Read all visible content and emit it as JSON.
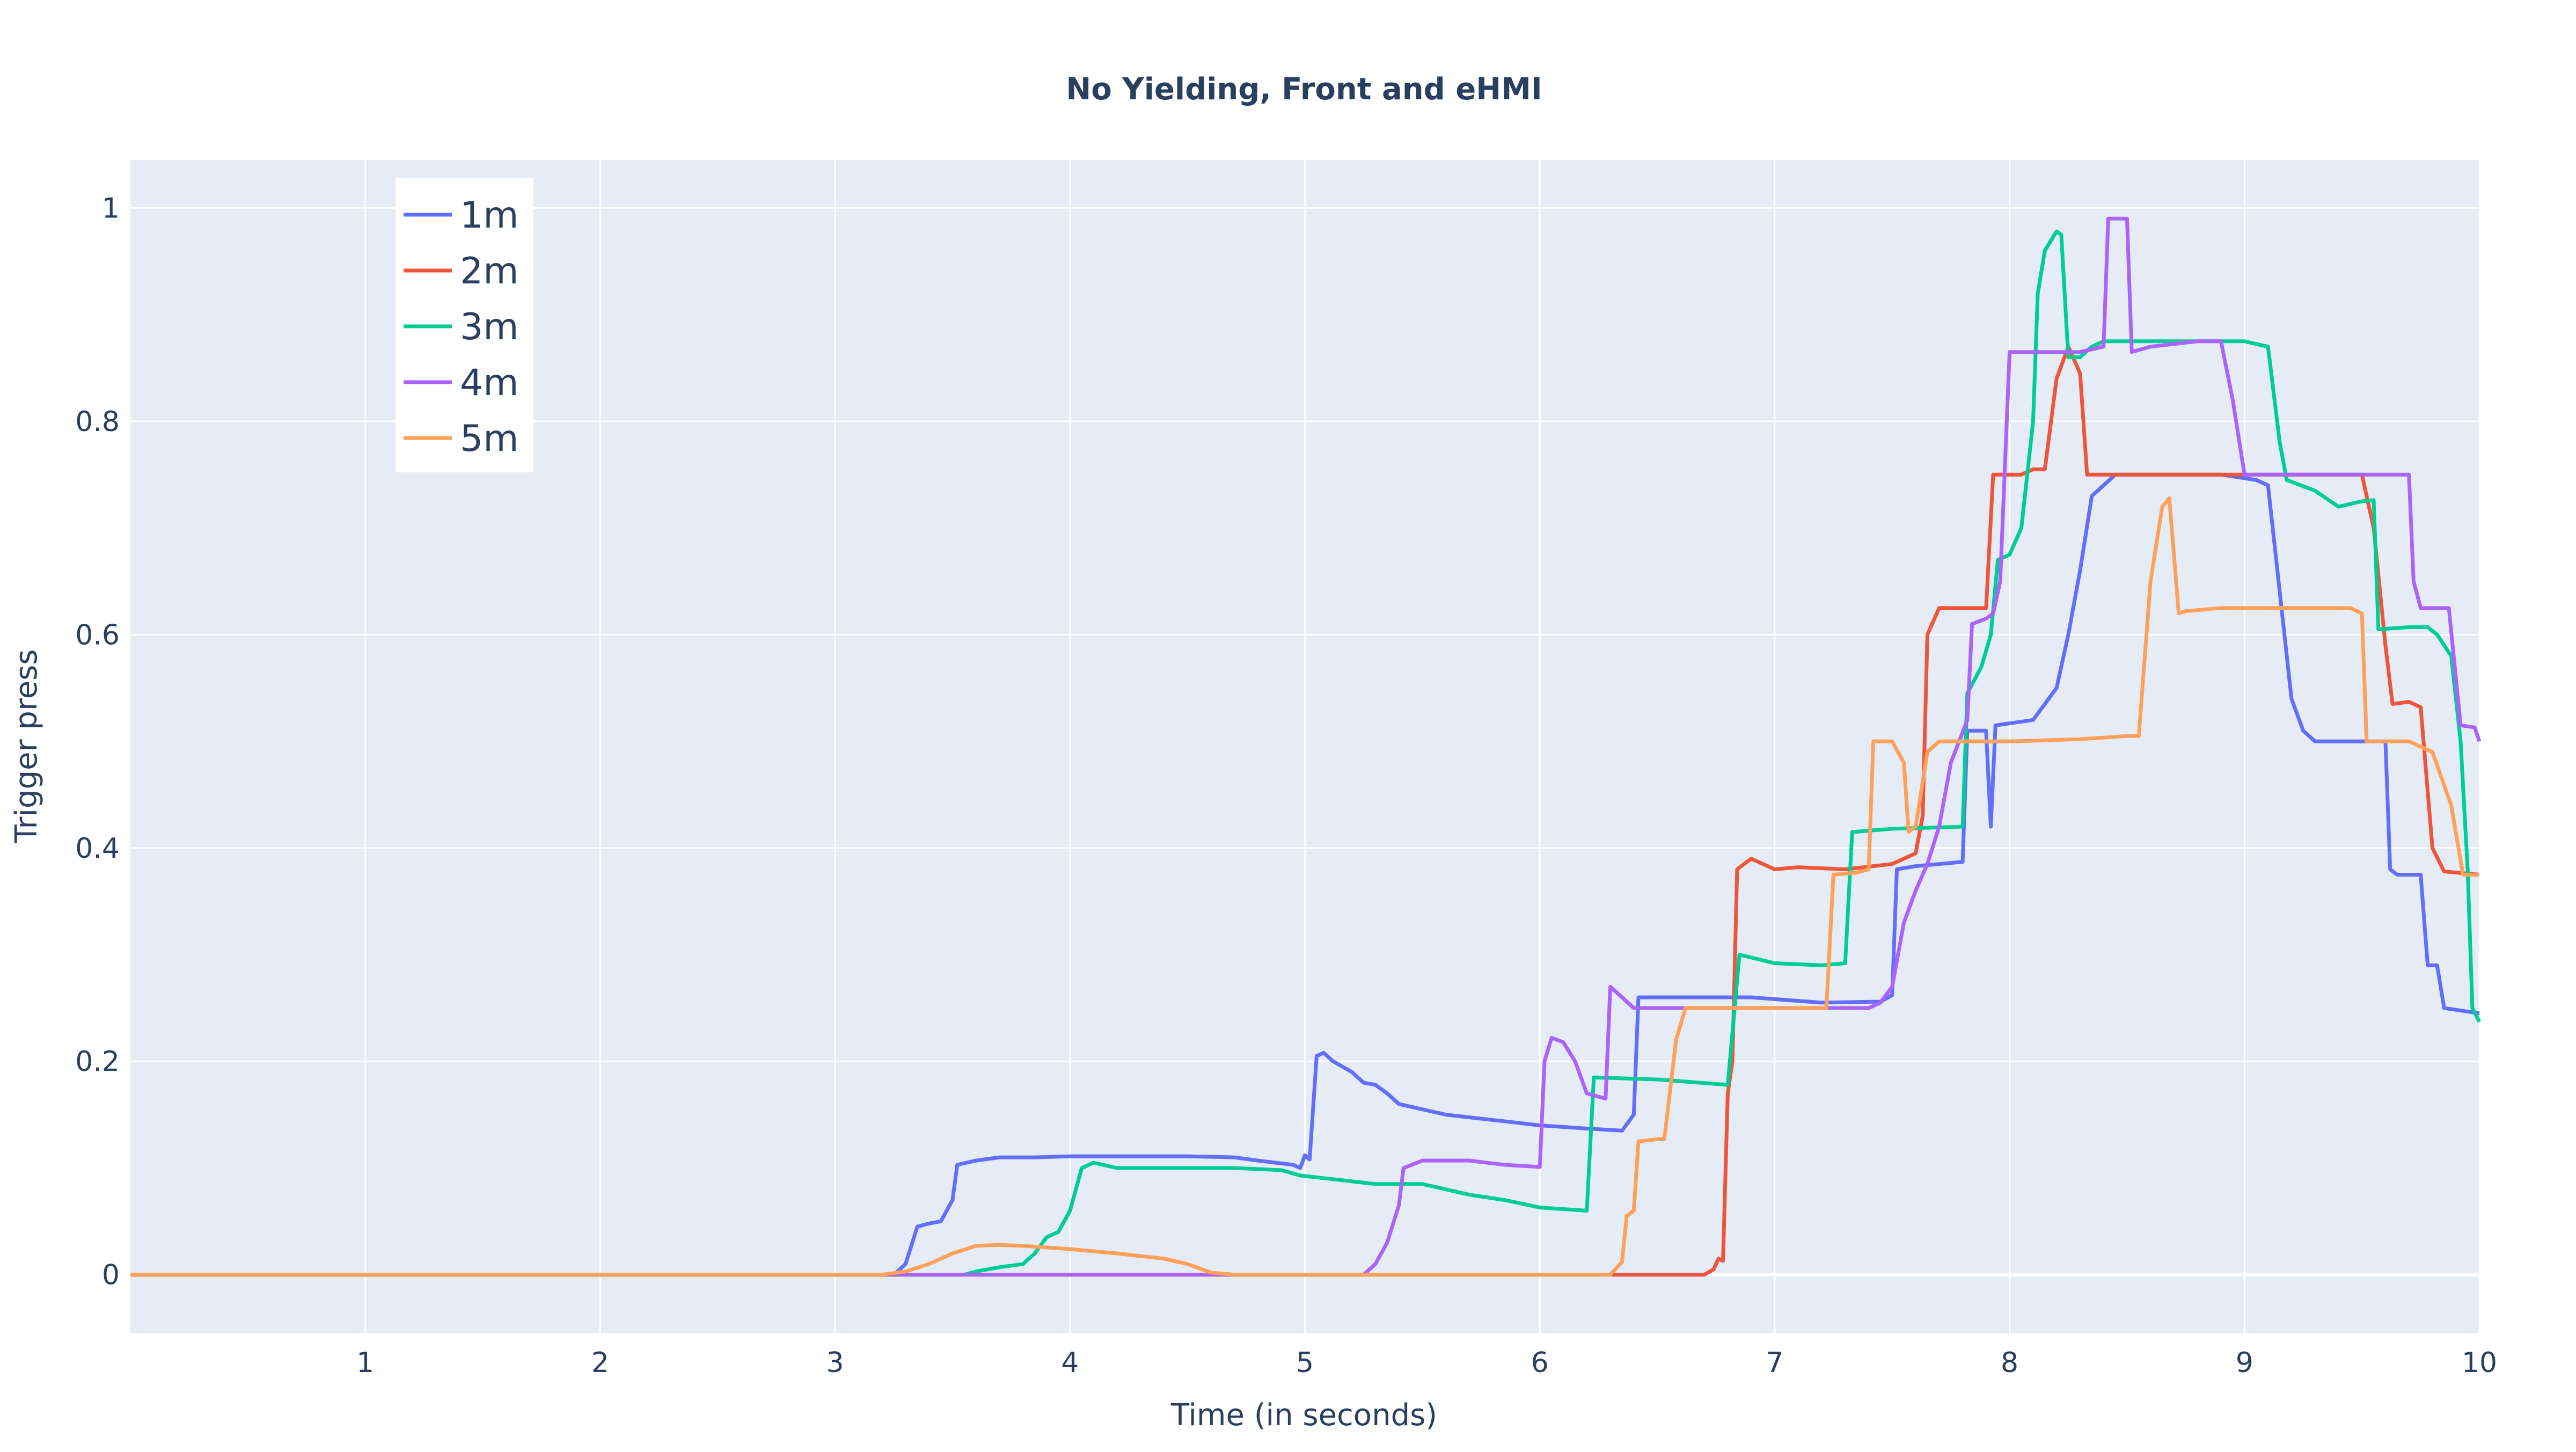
{
  "chart_data": {
    "type": "line",
    "title": "No Yielding, Front and eHMI",
    "xlabel": "Time (in seconds)",
    "ylabel": "Trigger press",
    "xlim": [
      0,
      10
    ],
    "ylim": [
      -0.055,
      1.045
    ],
    "xticks": [
      1,
      2,
      3,
      4,
      5,
      6,
      7,
      8,
      9,
      10
    ],
    "xtick_labels": [
      "1",
      "2",
      "3",
      "4",
      "5",
      "6",
      "7",
      "8",
      "9",
      "10"
    ],
    "yticks": [
      0,
      0.2,
      0.4,
      0.6,
      0.8,
      1
    ],
    "ytick_labels": [
      "0",
      "0.2",
      "0.4",
      "0.6",
      "0.8",
      "1"
    ],
    "grid": true,
    "legend_position": "top-left",
    "background_color": "#e5ecf6",
    "series": [
      {
        "name": "1m",
        "color": "#636efa",
        "points": [
          [
            0,
            0
          ],
          [
            3.25,
            0
          ],
          [
            3.3,
            0.01
          ],
          [
            3.35,
            0.045
          ],
          [
            3.4,
            0.048
          ],
          [
            3.45,
            0.05
          ],
          [
            3.5,
            0.07
          ],
          [
            3.52,
            0.103
          ],
          [
            3.6,
            0.107
          ],
          [
            3.7,
            0.11
          ],
          [
            3.85,
            0.11
          ],
          [
            4.0,
            0.111
          ],
          [
            4.5,
            0.111
          ],
          [
            4.7,
            0.11
          ],
          [
            4.8,
            0.107
          ],
          [
            4.95,
            0.103
          ],
          [
            4.98,
            0.1
          ],
          [
            5.0,
            0.112
          ],
          [
            5.02,
            0.108
          ],
          [
            5.05,
            0.205
          ],
          [
            5.08,
            0.208
          ],
          [
            5.12,
            0.2
          ],
          [
            5.2,
            0.19
          ],
          [
            5.25,
            0.18
          ],
          [
            5.3,
            0.178
          ],
          [
            5.35,
            0.17
          ],
          [
            5.4,
            0.16
          ],
          [
            5.5,
            0.155
          ],
          [
            5.6,
            0.15
          ],
          [
            5.8,
            0.145
          ],
          [
            6.0,
            0.14
          ],
          [
            6.2,
            0.137
          ],
          [
            6.35,
            0.135
          ],
          [
            6.4,
            0.15
          ],
          [
            6.42,
            0.26
          ],
          [
            6.6,
            0.26
          ],
          [
            6.9,
            0.26
          ],
          [
            7.2,
            0.255
          ],
          [
            7.45,
            0.256
          ],
          [
            7.5,
            0.262
          ],
          [
            7.52,
            0.38
          ],
          [
            7.6,
            0.383
          ],
          [
            7.7,
            0.385
          ],
          [
            7.8,
            0.387
          ],
          [
            7.82,
            0.51
          ],
          [
            7.9,
            0.51
          ],
          [
            7.92,
            0.42
          ],
          [
            7.94,
            0.515
          ],
          [
            8.1,
            0.52
          ],
          [
            8.2,
            0.55
          ],
          [
            8.25,
            0.6
          ],
          [
            8.3,
            0.66
          ],
          [
            8.35,
            0.73
          ],
          [
            8.45,
            0.75
          ],
          [
            8.6,
            0.75
          ],
          [
            8.9,
            0.75
          ],
          [
            9.05,
            0.745
          ],
          [
            9.1,
            0.74
          ],
          [
            9.15,
            0.64
          ],
          [
            9.2,
            0.54
          ],
          [
            9.25,
            0.51
          ],
          [
            9.3,
            0.5
          ],
          [
            9.6,
            0.5
          ],
          [
            9.62,
            0.38
          ],
          [
            9.65,
            0.375
          ],
          [
            9.75,
            0.375
          ],
          [
            9.78,
            0.29
          ],
          [
            9.82,
            0.29
          ],
          [
            9.85,
            0.25
          ],
          [
            10.0,
            0.245
          ]
        ]
      },
      {
        "name": "2m",
        "color": "#ef553b",
        "points": [
          [
            0,
            0
          ],
          [
            6.7,
            0
          ],
          [
            6.74,
            0.005
          ],
          [
            6.76,
            0.015
          ],
          [
            6.78,
            0.013
          ],
          [
            6.8,
            0.17
          ],
          [
            6.82,
            0.2
          ],
          [
            6.84,
            0.38
          ],
          [
            6.9,
            0.39
          ],
          [
            6.95,
            0.385
          ],
          [
            7.0,
            0.38
          ],
          [
            7.1,
            0.382
          ],
          [
            7.3,
            0.38
          ],
          [
            7.5,
            0.385
          ],
          [
            7.6,
            0.395
          ],
          [
            7.63,
            0.43
          ],
          [
            7.65,
            0.6
          ],
          [
            7.7,
            0.625
          ],
          [
            7.85,
            0.625
          ],
          [
            7.9,
            0.625
          ],
          [
            7.93,
            0.75
          ],
          [
            8.05,
            0.75
          ],
          [
            8.1,
            0.755
          ],
          [
            8.15,
            0.755
          ],
          [
            8.2,
            0.84
          ],
          [
            8.25,
            0.87
          ],
          [
            8.3,
            0.845
          ],
          [
            8.33,
            0.75
          ],
          [
            8.6,
            0.75
          ],
          [
            9.0,
            0.75
          ],
          [
            9.3,
            0.75
          ],
          [
            9.5,
            0.75
          ],
          [
            9.55,
            0.7
          ],
          [
            9.6,
            0.59
          ],
          [
            9.63,
            0.535
          ],
          [
            9.7,
            0.537
          ],
          [
            9.75,
            0.532
          ],
          [
            9.8,
            0.4
          ],
          [
            9.85,
            0.378
          ],
          [
            10.0,
            0.375
          ]
        ]
      },
      {
        "name": "3m",
        "color": "#00cc96",
        "points": [
          [
            0,
            0
          ],
          [
            3.55,
            0
          ],
          [
            3.6,
            0.003
          ],
          [
            3.7,
            0.007
          ],
          [
            3.8,
            0.01
          ],
          [
            3.85,
            0.02
          ],
          [
            3.9,
            0.035
          ],
          [
            3.95,
            0.04
          ],
          [
            4.0,
            0.06
          ],
          [
            4.05,
            0.1
          ],
          [
            4.1,
            0.105
          ],
          [
            4.2,
            0.1
          ],
          [
            4.4,
            0.1
          ],
          [
            4.7,
            0.1
          ],
          [
            4.9,
            0.098
          ],
          [
            4.98,
            0.093
          ],
          [
            5.1,
            0.09
          ],
          [
            5.3,
            0.085
          ],
          [
            5.5,
            0.085
          ],
          [
            5.7,
            0.075
          ],
          [
            5.85,
            0.07
          ],
          [
            6.0,
            0.063
          ],
          [
            6.2,
            0.06
          ],
          [
            6.23,
            0.185
          ],
          [
            6.5,
            0.183
          ],
          [
            6.8,
            0.178
          ],
          [
            6.85,
            0.3
          ],
          [
            7.0,
            0.292
          ],
          [
            7.2,
            0.29
          ],
          [
            7.3,
            0.292
          ],
          [
            7.33,
            0.415
          ],
          [
            7.5,
            0.418
          ],
          [
            7.8,
            0.42
          ],
          [
            7.82,
            0.545
          ],
          [
            7.88,
            0.57
          ],
          [
            7.92,
            0.6
          ],
          [
            7.95,
            0.67
          ],
          [
            8.0,
            0.675
          ],
          [
            8.05,
            0.7
          ],
          [
            8.1,
            0.8
          ],
          [
            8.12,
            0.92
          ],
          [
            8.15,
            0.96
          ],
          [
            8.2,
            0.978
          ],
          [
            8.22,
            0.975
          ],
          [
            8.25,
            0.86
          ],
          [
            8.3,
            0.86
          ],
          [
            8.35,
            0.87
          ],
          [
            8.4,
            0.875
          ],
          [
            8.6,
            0.875
          ],
          [
            9.0,
            0.875
          ],
          [
            9.1,
            0.87
          ],
          [
            9.15,
            0.78
          ],
          [
            9.18,
            0.745
          ],
          [
            9.3,
            0.735
          ],
          [
            9.4,
            0.72
          ],
          [
            9.5,
            0.725
          ],
          [
            9.55,
            0.726
          ],
          [
            9.57,
            0.605
          ],
          [
            9.7,
            0.607
          ],
          [
            9.78,
            0.607
          ],
          [
            9.82,
            0.6
          ],
          [
            9.88,
            0.58
          ],
          [
            9.92,
            0.5
          ],
          [
            9.95,
            0.38
          ],
          [
            9.97,
            0.25
          ],
          [
            10.0,
            0.237
          ]
        ]
      },
      {
        "name": "4m",
        "color": "#ab63fa",
        "points": [
          [
            0,
            0
          ],
          [
            5.25,
            0
          ],
          [
            5.3,
            0.01
          ],
          [
            5.35,
            0.03
          ],
          [
            5.4,
            0.065
          ],
          [
            5.42,
            0.1
          ],
          [
            5.5,
            0.107
          ],
          [
            5.7,
            0.107
          ],
          [
            5.85,
            0.103
          ],
          [
            6.0,
            0.101
          ],
          [
            6.02,
            0.2
          ],
          [
            6.05,
            0.222
          ],
          [
            6.1,
            0.218
          ],
          [
            6.15,
            0.2
          ],
          [
            6.2,
            0.17
          ],
          [
            6.28,
            0.165
          ],
          [
            6.3,
            0.27
          ],
          [
            6.35,
            0.26
          ],
          [
            6.4,
            0.25
          ],
          [
            6.6,
            0.25
          ],
          [
            6.9,
            0.25
          ],
          [
            7.2,
            0.25
          ],
          [
            7.4,
            0.25
          ],
          [
            7.45,
            0.255
          ],
          [
            7.5,
            0.27
          ],
          [
            7.55,
            0.33
          ],
          [
            7.6,
            0.36
          ],
          [
            7.65,
            0.385
          ],
          [
            7.7,
            0.42
          ],
          [
            7.75,
            0.48
          ],
          [
            7.82,
            0.52
          ],
          [
            7.84,
            0.61
          ],
          [
            7.9,
            0.615
          ],
          [
            7.93,
            0.62
          ],
          [
            7.96,
            0.65
          ],
          [
            8.0,
            0.865
          ],
          [
            8.1,
            0.865
          ],
          [
            8.3,
            0.865
          ],
          [
            8.4,
            0.87
          ],
          [
            8.42,
            0.99
          ],
          [
            8.5,
            0.99
          ],
          [
            8.52,
            0.865
          ],
          [
            8.6,
            0.87
          ],
          [
            8.8,
            0.875
          ],
          [
            8.9,
            0.875
          ],
          [
            8.95,
            0.82
          ],
          [
            9.0,
            0.75
          ],
          [
            9.2,
            0.75
          ],
          [
            9.6,
            0.75
          ],
          [
            9.7,
            0.75
          ],
          [
            9.72,
            0.65
          ],
          [
            9.75,
            0.625
          ],
          [
            9.87,
            0.625
          ],
          [
            9.92,
            0.515
          ],
          [
            9.98,
            0.513
          ],
          [
            10.0,
            0.5
          ]
        ]
      },
      {
        "name": "5m",
        "color": "#ffa15a",
        "points": [
          [
            0,
            0
          ],
          [
            3.2,
            0
          ],
          [
            3.3,
            0.003
          ],
          [
            3.4,
            0.01
          ],
          [
            3.5,
            0.02
          ],
          [
            3.6,
            0.027
          ],
          [
            3.7,
            0.028
          ],
          [
            3.8,
            0.027
          ],
          [
            4.0,
            0.024
          ],
          [
            4.2,
            0.02
          ],
          [
            4.4,
            0.015
          ],
          [
            4.5,
            0.01
          ],
          [
            4.6,
            0.002
          ],
          [
            4.7,
            0
          ],
          [
            6.3,
            0
          ],
          [
            6.35,
            0.012
          ],
          [
            6.37,
            0.055
          ],
          [
            6.4,
            0.06
          ],
          [
            6.42,
            0.125
          ],
          [
            6.5,
            0.127
          ],
          [
            6.53,
            0.127
          ],
          [
            6.58,
            0.22
          ],
          [
            6.62,
            0.25
          ],
          [
            6.8,
            0.25
          ],
          [
            7.1,
            0.25
          ],
          [
            7.22,
            0.25
          ],
          [
            7.25,
            0.375
          ],
          [
            7.35,
            0.377
          ],
          [
            7.4,
            0.38
          ],
          [
            7.42,
            0.5
          ],
          [
            7.5,
            0.5
          ],
          [
            7.55,
            0.48
          ],
          [
            7.57,
            0.415
          ],
          [
            7.6,
            0.42
          ],
          [
            7.65,
            0.49
          ],
          [
            7.7,
            0.5
          ],
          [
            8.0,
            0.5
          ],
          [
            8.3,
            0.502
          ],
          [
            8.5,
            0.505
          ],
          [
            8.55,
            0.505
          ],
          [
            8.6,
            0.65
          ],
          [
            8.65,
            0.72
          ],
          [
            8.68,
            0.728
          ],
          [
            8.72,
            0.62
          ],
          [
            8.75,
            0.622
          ],
          [
            8.9,
            0.625
          ],
          [
            9.3,
            0.625
          ],
          [
            9.45,
            0.625
          ],
          [
            9.5,
            0.62
          ],
          [
            9.52,
            0.5
          ],
          [
            9.7,
            0.5
          ],
          [
            9.8,
            0.49
          ],
          [
            9.88,
            0.44
          ],
          [
            9.93,
            0.375
          ],
          [
            10.0,
            0.375
          ]
        ]
      }
    ]
  }
}
